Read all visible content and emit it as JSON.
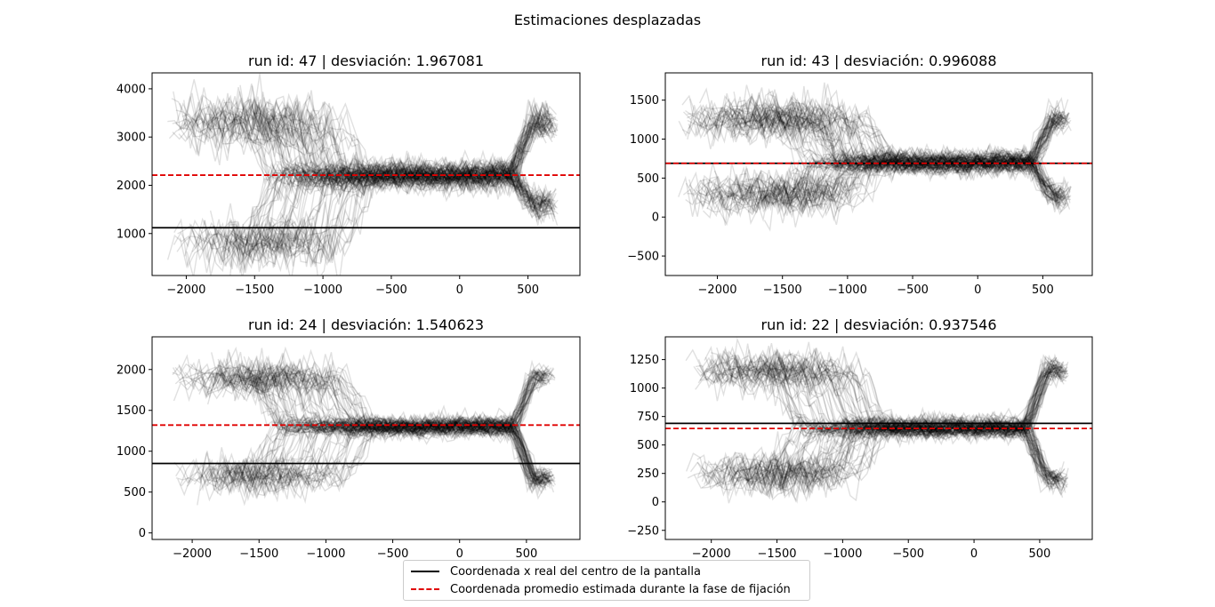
{
  "figure": {
    "suptitle": "Estimaciones desplazadas",
    "legend": [
      {
        "label": "Coordenada x real del centro de la pantalla",
        "color": "#000000",
        "style": "solid"
      },
      {
        "label": "Coordenada promedio estimada durante la fase de fijación",
        "color": "#e00000",
        "style": "dashed"
      }
    ]
  },
  "chart_data": [
    {
      "type": "line",
      "title": "run id: 47 | desviación: 1.967081",
      "xlim": [
        -2250,
        880
      ],
      "ylim": [
        130,
        4330
      ],
      "xticks": [
        -2000,
        -1500,
        -1000,
        -500,
        0,
        500
      ],
      "yticks": [
        1000,
        2000,
        3000,
        4000
      ],
      "hlines": [
        {
          "y": 1120,
          "color": "#000000",
          "style": "solid"
        },
        {
          "y": 2210,
          "color": "#e00000",
          "style": "dashed"
        }
      ],
      "traces": {
        "count": 110,
        "x_start_range": [
          -2150,
          -1300
        ],
        "x_end_range": [
          620,
          720
        ],
        "center": 2200,
        "spread": 220,
        "high": 3300,
        "low": 1600,
        "early_low": 800,
        "trans_x": 380
      }
    },
    {
      "type": "line",
      "title": "run id: 43 | desviación: 0.996088",
      "xlim": [
        -2400,
        880
      ],
      "ylim": [
        -750,
        1850
      ],
      "xticks": [
        -2000,
        -1500,
        -1000,
        -500,
        0,
        500
      ],
      "yticks": [
        -500,
        0,
        500,
        1000,
        1500
      ],
      "hlines": [
        {
          "y": 690,
          "color": "#000000",
          "style": "solid"
        },
        {
          "y": 690,
          "color": "#e00000",
          "style": "dashed"
        }
      ],
      "traces": {
        "count": 110,
        "x_start_range": [
          -2300,
          -1500
        ],
        "x_end_range": [
          620,
          720
        ],
        "center": 700,
        "spread": 110,
        "high": 1250,
        "low": 250,
        "early_low": 300,
        "trans_x": 420
      }
    },
    {
      "type": "line",
      "title": "run id: 24 | desviación: 1.540623",
      "xlim": [
        -2300,
        900
      ],
      "ylim": [
        -80,
        2400
      ],
      "xticks": [
        -2000,
        -1500,
        -1000,
        -500,
        0,
        500
      ],
      "yticks": [
        0,
        500,
        1000,
        1500,
        2000
      ],
      "hlines": [
        {
          "y": 850,
          "color": "#000000",
          "style": "solid"
        },
        {
          "y": 1320,
          "color": "#e00000",
          "style": "dashed"
        }
      ],
      "traces": {
        "count": 110,
        "x_start_range": [
          -2150,
          -1400
        ],
        "x_end_range": [
          620,
          720
        ],
        "center": 1300,
        "spread": 90,
        "high": 1900,
        "low": 650,
        "early_low": 700,
        "trans_x": 400
      }
    },
    {
      "type": "line",
      "title": "run id: 22 | desviación: 0.937546",
      "xlim": [
        -2350,
        900
      ],
      "ylim": [
        -330,
        1450
      ],
      "xticks": [
        -2000,
        -1500,
        -1000,
        -500,
        0,
        500
      ],
      "yticks": [
        -250,
        0,
        250,
        500,
        750,
        1000,
        1250
      ],
      "hlines": [
        {
          "y": 690,
          "color": "#000000",
          "style": "solid"
        },
        {
          "y": 645,
          "color": "#e00000",
          "style": "dashed"
        }
      ],
      "traces": {
        "count": 110,
        "x_start_range": [
          -2200,
          -1400
        ],
        "x_end_range": [
          620,
          720
        ],
        "center": 650,
        "spread": 70,
        "high": 1150,
        "low": 200,
        "early_low": 250,
        "trans_x": 400
      }
    }
  ]
}
